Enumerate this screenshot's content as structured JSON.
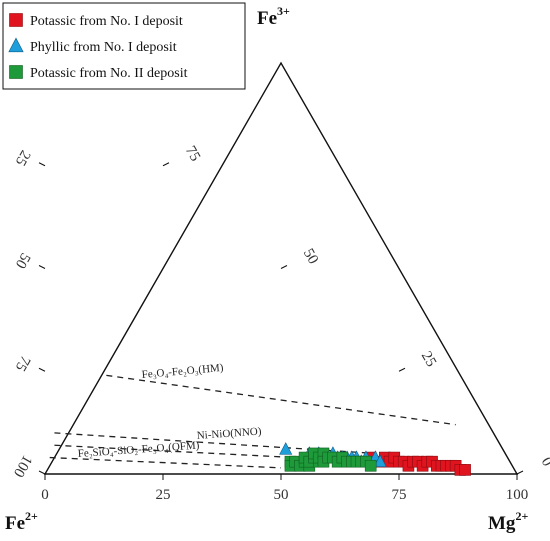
{
  "chart_data": {
    "type": "scatter",
    "subtype": "ternary",
    "vertices": {
      "left": "Fe",
      "left_sup": "2+",
      "top": "Fe",
      "top_sup": "3+",
      "right": "Mg",
      "right_sup": "2+"
    },
    "ticks": {
      "bottom": [
        "0",
        "25",
        "50",
        "75",
        "100"
      ],
      "left": [
        "100",
        "75",
        "50",
        "25",
        "0"
      ],
      "right": [
        "100",
        "75",
        "50",
        "25",
        "0"
      ]
    },
    "buffers": [
      {
        "label": "Fe₃O₄-Fe₂O₃(HM)",
        "line": [
          [
            13,
            24
          ],
          [
            87,
            12
          ]
        ]
      },
      {
        "label": "Ni-NiO(NNO)",
        "line": [
          [
            2,
            10
          ],
          [
            70,
            5
          ]
        ]
      },
      {
        "label": "Fe₂SiO₄-SiO₂-Fe₃O₄(QFM)",
        "line": [
          [
            2,
            7
          ],
          [
            70,
            3
          ]
        ]
      },
      {
        "label": "",
        "line": [
          [
            1,
            4
          ],
          [
            50,
            1.5
          ]
        ]
      }
    ],
    "series": [
      {
        "name": "Potassic from No. I deposit",
        "marker": "square",
        "color": "#e0141e",
        "points": [
          [
            69,
            4
          ],
          [
            71,
            3
          ],
          [
            72,
            4
          ],
          [
            73,
            3
          ],
          [
            74,
            4
          ],
          [
            75,
            3
          ],
          [
            76,
            3
          ],
          [
            77,
            2
          ],
          [
            78,
            3
          ],
          [
            79,
            3
          ],
          [
            80,
            2
          ],
          [
            81,
            3
          ],
          [
            82,
            3
          ],
          [
            83,
            2
          ],
          [
            84,
            2
          ],
          [
            85,
            2
          ],
          [
            86,
            2
          ],
          [
            87,
            2
          ],
          [
            88,
            1
          ],
          [
            89,
            1
          ]
        ]
      },
      {
        "name": "Phyllic from  No. I deposit",
        "marker": "triangle",
        "color": "#1e9fdc",
        "points": [
          [
            51,
            6
          ],
          [
            56,
            5
          ],
          [
            57,
            4
          ],
          [
            58,
            5
          ],
          [
            59,
            4
          ],
          [
            60,
            4
          ],
          [
            61,
            5
          ],
          [
            62,
            4
          ],
          [
            63,
            4
          ],
          [
            64,
            4
          ],
          [
            65,
            4
          ],
          [
            66,
            4
          ],
          [
            67,
            3
          ],
          [
            68,
            4
          ],
          [
            70,
            4
          ],
          [
            71,
            3
          ]
        ]
      },
      {
        "name": "Potassic from No. II deposit",
        "marker": "square",
        "color": "#1f9a3a",
        "points": [
          [
            52,
            3
          ],
          [
            52,
            2
          ],
          [
            53,
            3
          ],
          [
            54,
            2
          ],
          [
            55,
            3
          ],
          [
            55,
            4
          ],
          [
            56,
            2
          ],
          [
            56,
            3
          ],
          [
            57,
            4
          ],
          [
            57,
            5
          ],
          [
            58,
            3
          ],
          [
            58,
            4
          ],
          [
            59,
            5
          ],
          [
            59,
            3
          ],
          [
            60,
            4
          ],
          [
            61,
            4
          ],
          [
            62,
            3
          ],
          [
            63,
            4
          ],
          [
            64,
            3
          ],
          [
            65,
            3
          ],
          [
            66,
            3
          ],
          [
            67,
            3
          ],
          [
            68,
            3
          ],
          [
            69,
            2
          ]
        ]
      }
    ]
  }
}
